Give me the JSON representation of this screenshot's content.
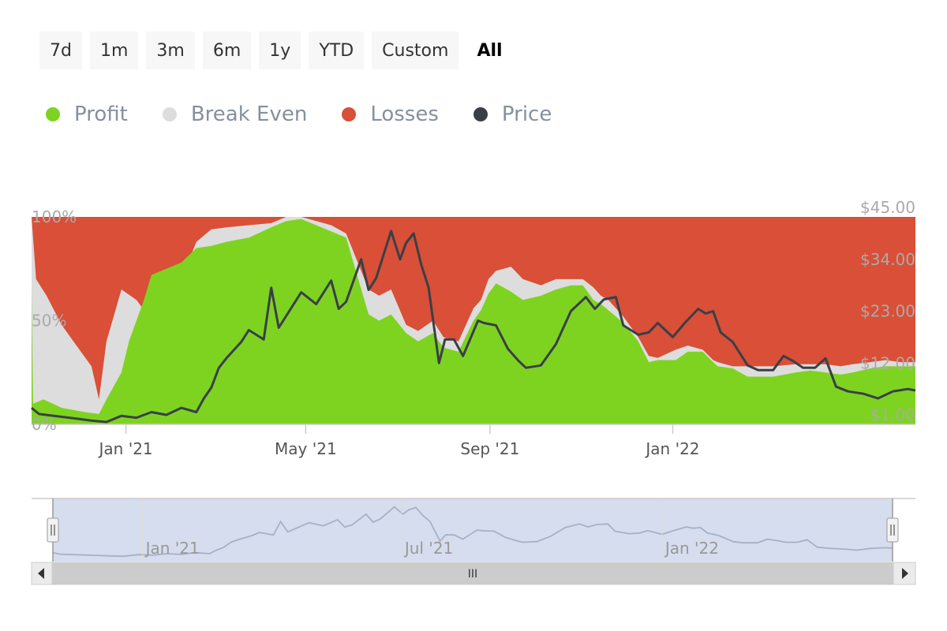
{
  "range_selector": {
    "buttons": [
      "7d",
      "1m",
      "3m",
      "6m",
      "1y",
      "YTD",
      "Custom",
      "All"
    ],
    "active": "All"
  },
  "legend": [
    {
      "label": "Profit",
      "color": "#7ed321"
    },
    {
      "label": "Break Even",
      "color": "#dddddd"
    },
    {
      "label": "Losses",
      "color": "#d94f37"
    },
    {
      "label": "Price",
      "color": "#3a3f47"
    }
  ],
  "chart_data": {
    "type": "area",
    "title": "",
    "left_axis": {
      "ticks": [
        "0%",
        "50%",
        "100%"
      ],
      "range": [
        0,
        100
      ]
    },
    "right_axis": {
      "ticks": [
        "$1.00",
        "$12.00",
        "$23.00",
        "$34.00",
        "$45.00"
      ],
      "range": [
        1,
        45
      ]
    },
    "x_ticks": [
      "Jan '21",
      "May '21",
      "Sep '21",
      "Jan '22"
    ],
    "x_tick_days": [
      63,
      183,
      306,
      428
    ],
    "day_range": [
      0,
      590
    ],
    "profit": [
      [
        0,
        65
      ],
      [
        1,
        10
      ],
      [
        8,
        12
      ],
      [
        20,
        8
      ],
      [
        35,
        6
      ],
      [
        45,
        5
      ],
      [
        50,
        12
      ],
      [
        60,
        25
      ],
      [
        65,
        40
      ],
      [
        70,
        50
      ],
      [
        75,
        60
      ],
      [
        80,
        72
      ],
      [
        90,
        75
      ],
      [
        100,
        78
      ],
      [
        110,
        85
      ],
      [
        120,
        86
      ],
      [
        130,
        88
      ],
      [
        145,
        90
      ],
      [
        160,
        95
      ],
      [
        170,
        98
      ],
      [
        180,
        99
      ],
      [
        200,
        93
      ],
      [
        210,
        90
      ],
      [
        225,
        53
      ],
      [
        232,
        50
      ],
      [
        240,
        53
      ],
      [
        250,
        44
      ],
      [
        258,
        40
      ],
      [
        268,
        44
      ],
      [
        275,
        37
      ],
      [
        285,
        35
      ],
      [
        295,
        50
      ],
      [
        300,
        55
      ],
      [
        305,
        63
      ],
      [
        310,
        68
      ],
      [
        320,
        64
      ],
      [
        328,
        60
      ],
      [
        340,
        62
      ],
      [
        350,
        65
      ],
      [
        360,
        67
      ],
      [
        368,
        67
      ],
      [
        375,
        60
      ],
      [
        380,
        58
      ],
      [
        385,
        55
      ],
      [
        395,
        49
      ],
      [
        405,
        40
      ],
      [
        412,
        30
      ],
      [
        418,
        31
      ],
      [
        430,
        31
      ],
      [
        438,
        35
      ],
      [
        448,
        35
      ],
      [
        455,
        30
      ],
      [
        458,
        28
      ],
      [
        468,
        27
      ],
      [
        478,
        23
      ],
      [
        495,
        23
      ],
      [
        510,
        25
      ],
      [
        520,
        26
      ],
      [
        530,
        25
      ],
      [
        540,
        24
      ],
      [
        548,
        25
      ],
      [
        560,
        27
      ],
      [
        570,
        28
      ],
      [
        580,
        28
      ],
      [
        590,
        28
      ]
    ],
    "break_even": [
      [
        0,
        100
      ],
      [
        3,
        70
      ],
      [
        10,
        62
      ],
      [
        20,
        48
      ],
      [
        30,
        38
      ],
      [
        40,
        28
      ],
      [
        45,
        12
      ],
      [
        50,
        40
      ],
      [
        60,
        65
      ],
      [
        70,
        60
      ],
      [
        75,
        55
      ],
      [
        80,
        40
      ],
      [
        90,
        67
      ],
      [
        100,
        70
      ],
      [
        110,
        88
      ],
      [
        120,
        94
      ],
      [
        130,
        95
      ],
      [
        145,
        96
      ],
      [
        160,
        97
      ],
      [
        170,
        100
      ],
      [
        180,
        100
      ],
      [
        200,
        96
      ],
      [
        210,
        92
      ],
      [
        225,
        65
      ],
      [
        232,
        62
      ],
      [
        240,
        65
      ],
      [
        250,
        48
      ],
      [
        258,
        45
      ],
      [
        268,
        50
      ],
      [
        275,
        42
      ],
      [
        285,
        40
      ],
      [
        295,
        56
      ],
      [
        300,
        60
      ],
      [
        305,
        70
      ],
      [
        310,
        74
      ],
      [
        320,
        76
      ],
      [
        328,
        70
      ],
      [
        340,
        67
      ],
      [
        350,
        70
      ],
      [
        360,
        70
      ],
      [
        368,
        70
      ],
      [
        375,
        66
      ],
      [
        380,
        62
      ],
      [
        385,
        60
      ],
      [
        395,
        52
      ],
      [
        405,
        42
      ],
      [
        412,
        33
      ],
      [
        418,
        32
      ],
      [
        430,
        36
      ],
      [
        438,
        38
      ],
      [
        448,
        36
      ],
      [
        455,
        31
      ],
      [
        458,
        30
      ],
      [
        468,
        28
      ],
      [
        478,
        28
      ],
      [
        495,
        28
      ],
      [
        510,
        29
      ],
      [
        520,
        29
      ],
      [
        530,
        29
      ],
      [
        540,
        28
      ],
      [
        548,
        29
      ],
      [
        560,
        30
      ],
      [
        570,
        31
      ],
      [
        580,
        30
      ],
      [
        590,
        30
      ]
    ],
    "price": [
      [
        0,
        4.5
      ],
      [
        5,
        3.2
      ],
      [
        15,
        2.8
      ],
      [
        30,
        2.2
      ],
      [
        40,
        1.8
      ],
      [
        50,
        1.5
      ],
      [
        60,
        2.8
      ],
      [
        70,
        2.4
      ],
      [
        80,
        3.6
      ],
      [
        90,
        3.0
      ],
      [
        100,
        4.5
      ],
      [
        110,
        3.6
      ],
      [
        115,
        6.5
      ],
      [
        120,
        8.8
      ],
      [
        125,
        13.0
      ],
      [
        130,
        15.0
      ],
      [
        140,
        18.5
      ],
      [
        145,
        21.0
      ],
      [
        150,
        20.0
      ],
      [
        155,
        19.0
      ],
      [
        160,
        30.0
      ],
      [
        165,
        21.5
      ],
      [
        170,
        24.0
      ],
      [
        180,
        29.0
      ],
      [
        190,
        26.5
      ],
      [
        200,
        31.5
      ],
      [
        205,
        25.5
      ],
      [
        210,
        27.0
      ],
      [
        220,
        36.0
      ],
      [
        225,
        29.5
      ],
      [
        230,
        32.0
      ],
      [
        240,
        42.0
      ],
      [
        246,
        36.0
      ],
      [
        250,
        39.5
      ],
      [
        255,
        41.5
      ],
      [
        260,
        35.0
      ],
      [
        265,
        30.0
      ],
      [
        272,
        14.0
      ],
      [
        276,
        19.0
      ],
      [
        282,
        19.0
      ],
      [
        288,
        15.5
      ],
      [
        298,
        23.0
      ],
      [
        302,
        22.5
      ],
      [
        310,
        22.0
      ],
      [
        318,
        17.0
      ],
      [
        325,
        14.5
      ],
      [
        330,
        13.0
      ],
      [
        340,
        13.5
      ],
      [
        350,
        18.0
      ],
      [
        360,
        25.0
      ],
      [
        370,
        28.0
      ],
      [
        376,
        25.5
      ],
      [
        382,
        27.5
      ],
      [
        390,
        28.0
      ],
      [
        395,
        22.0
      ],
      [
        405,
        20.0
      ],
      [
        412,
        20.5
      ],
      [
        418,
        22.5
      ],
      [
        428,
        19.5
      ],
      [
        436,
        22.5
      ],
      [
        445,
        25.5
      ],
      [
        450,
        24.5
      ],
      [
        455,
        25.0
      ],
      [
        460,
        20.5
      ],
      [
        468,
        18.5
      ],
      [
        478,
        13.5
      ],
      [
        485,
        12.5
      ],
      [
        495,
        12.5
      ],
      [
        502,
        15.5
      ],
      [
        508,
        14.5
      ],
      [
        515,
        13.0
      ],
      [
        523,
        13.0
      ],
      [
        530,
        15.0
      ],
      [
        537,
        9.0
      ],
      [
        545,
        8.0
      ],
      [
        555,
        7.5
      ],
      [
        565,
        6.5
      ],
      [
        575,
        8.0
      ],
      [
        585,
        8.5
      ],
      [
        590,
        8.2
      ]
    ]
  },
  "navigator": {
    "x_ticks": [
      "Jan '21",
      "Jul '21",
      "Jan '22"
    ],
    "x_tick_days": [
      63,
      245,
      428
    ],
    "scrollbar_grip": "III"
  }
}
